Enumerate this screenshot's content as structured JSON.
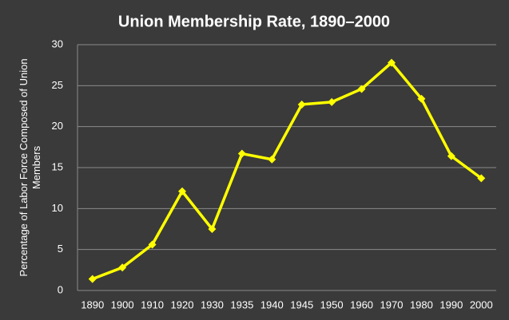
{
  "chart_data": {
    "type": "line",
    "title": "Union Membership Rate, 1890–2000",
    "y_label": "Percentage of Labor Force Composed of Union Members",
    "categories": [
      "1890",
      "1900",
      "1910",
      "1920",
      "1930",
      "1935",
      "1940",
      "1945",
      "1950",
      "1960",
      "1970",
      "1980",
      "1990",
      "2000"
    ],
    "series": [
      {
        "name": "Union Membership Rate",
        "color": "#ffff00",
        "values": [
          1.4,
          2.8,
          5.6,
          12.1,
          7.5,
          16.7,
          16.0,
          22.7,
          23.0,
          24.6,
          27.8,
          23.4,
          16.4,
          13.7
        ]
      }
    ],
    "ylim": [
      0,
      30
    ],
    "yticks": [
      0,
      5,
      10,
      15,
      20,
      25,
      30
    ],
    "grid": true
  }
}
